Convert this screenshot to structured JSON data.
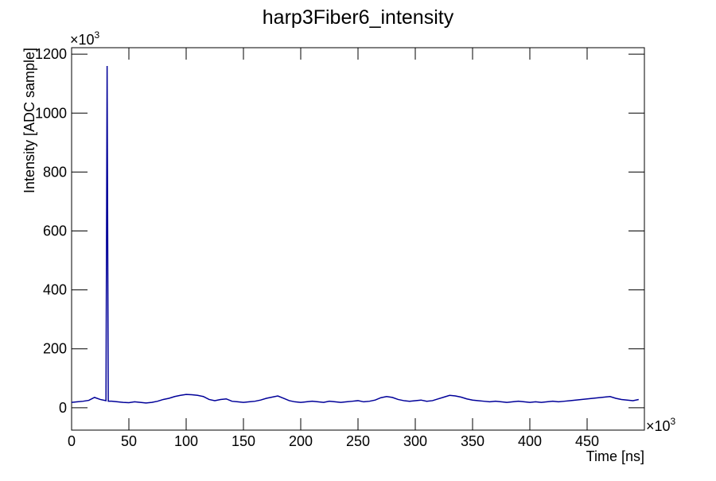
{
  "chart_data": {
    "type": "line",
    "title": "harp3Fiber6_intensity",
    "x_label": "Time [ns]",
    "y_label": "Intensity [ADC sample]",
    "x_multiplier": {
      "base": "×10",
      "exponent": "3"
    },
    "y_multiplier": {
      "base": "×10",
      "exponent": "3"
    },
    "x": [
      0,
      5,
      10,
      15,
      20,
      25,
      30,
      31,
      32,
      35,
      40,
      45,
      50,
      55,
      60,
      65,
      70,
      75,
      80,
      85,
      90,
      95,
      100,
      105,
      110,
      115,
      120,
      125,
      130,
      135,
      140,
      145,
      150,
      155,
      160,
      165,
      170,
      175,
      180,
      185,
      190,
      195,
      200,
      205,
      210,
      215,
      220,
      225,
      230,
      235,
      240,
      245,
      250,
      255,
      260,
      265,
      270,
      275,
      280,
      285,
      290,
      295,
      300,
      305,
      310,
      315,
      320,
      325,
      330,
      335,
      340,
      345,
      350,
      355,
      360,
      365,
      370,
      375,
      380,
      385,
      390,
      395,
      400,
      405,
      410,
      415,
      420,
      425,
      430,
      435,
      440,
      445,
      450,
      455,
      460,
      465,
      470,
      475,
      480,
      485,
      490,
      495
    ],
    "series": [
      {
        "color": "#000099",
        "values": [
          18,
          20,
          22,
          25,
          35,
          28,
          24,
          1160,
          22,
          22,
          20,
          18,
          17,
          20,
          18,
          16,
          18,
          22,
          28,
          32,
          38,
          42,
          45,
          44,
          42,
          38,
          28,
          24,
          28,
          30,
          22,
          20,
          18,
          20,
          22,
          26,
          32,
          36,
          40,
          32,
          24,
          20,
          18,
          20,
          22,
          20,
          18,
          22,
          20,
          18,
          20,
          22,
          24,
          20,
          22,
          26,
          34,
          38,
          35,
          28,
          24,
          22,
          24,
          26,
          22,
          24,
          30,
          36,
          42,
          40,
          36,
          30,
          26,
          24,
          22,
          20,
          22,
          20,
          18,
          20,
          22,
          20,
          18,
          20,
          18,
          20,
          22,
          20,
          22,
          24,
          26,
          28,
          30,
          32,
          34,
          36,
          38,
          32,
          28,
          26,
          24,
          28
        ]
      }
    ],
    "xlim": [
      0,
      500
    ],
    "ylim": [
      -76,
      1222
    ],
    "xticks": [
      0,
      50,
      100,
      150,
      200,
      250,
      300,
      350,
      400,
      450
    ],
    "yticks": [
      0,
      200,
      400,
      600,
      800,
      1000,
      1200
    ]
  }
}
